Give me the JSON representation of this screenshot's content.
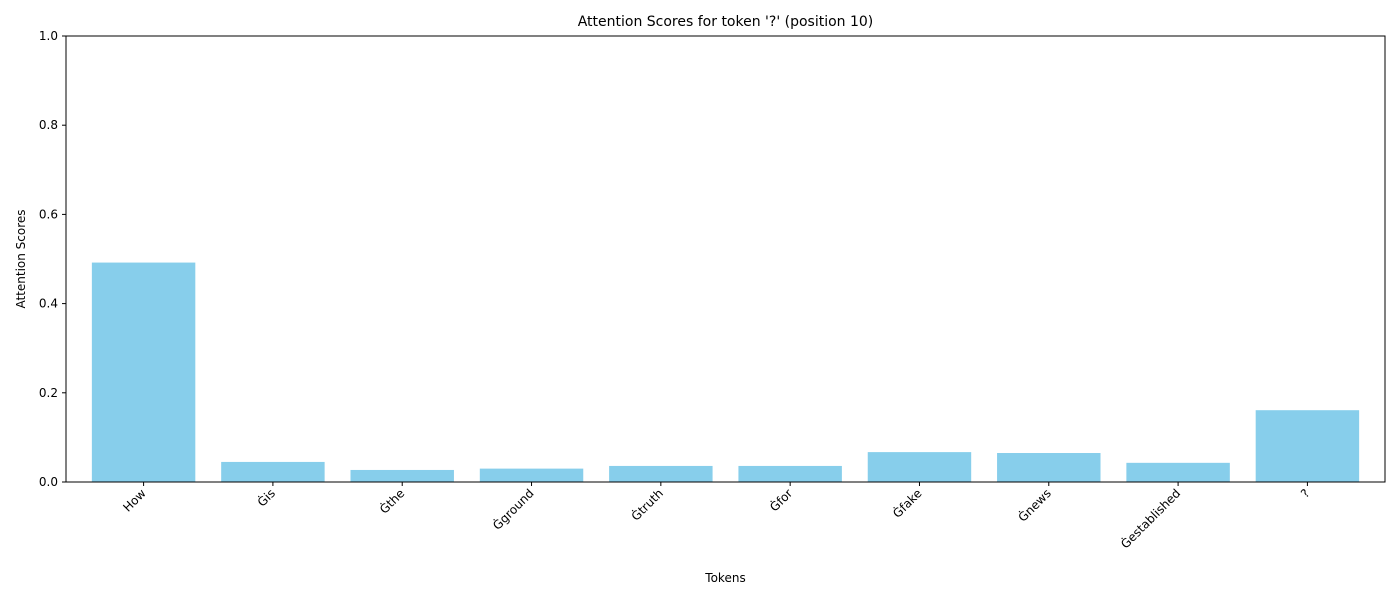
{
  "chart_data": {
    "type": "bar",
    "title": "Attention Scores for token '?' (position 10)",
    "xlabel": "Tokens",
    "ylabel": "Attention Scores",
    "categories": [
      "How",
      "Ġis",
      "Ġthe",
      "Ġground",
      "Ġtruth",
      "Ġfor",
      "Ġfake",
      "Ġnews",
      "Ġestablished",
      "?"
    ],
    "values": [
      0.492,
      0.045,
      0.027,
      0.03,
      0.036,
      0.036,
      0.067,
      0.065,
      0.043,
      0.161
    ],
    "ylim": [
      0,
      1
    ],
    "yticks": [
      "0.0",
      "0.2",
      "0.4",
      "0.6",
      "0.8",
      "1.0"
    ],
    "bar_color": "#87ceeb",
    "grid": false,
    "xtick_rotation": "45 degrees"
  }
}
